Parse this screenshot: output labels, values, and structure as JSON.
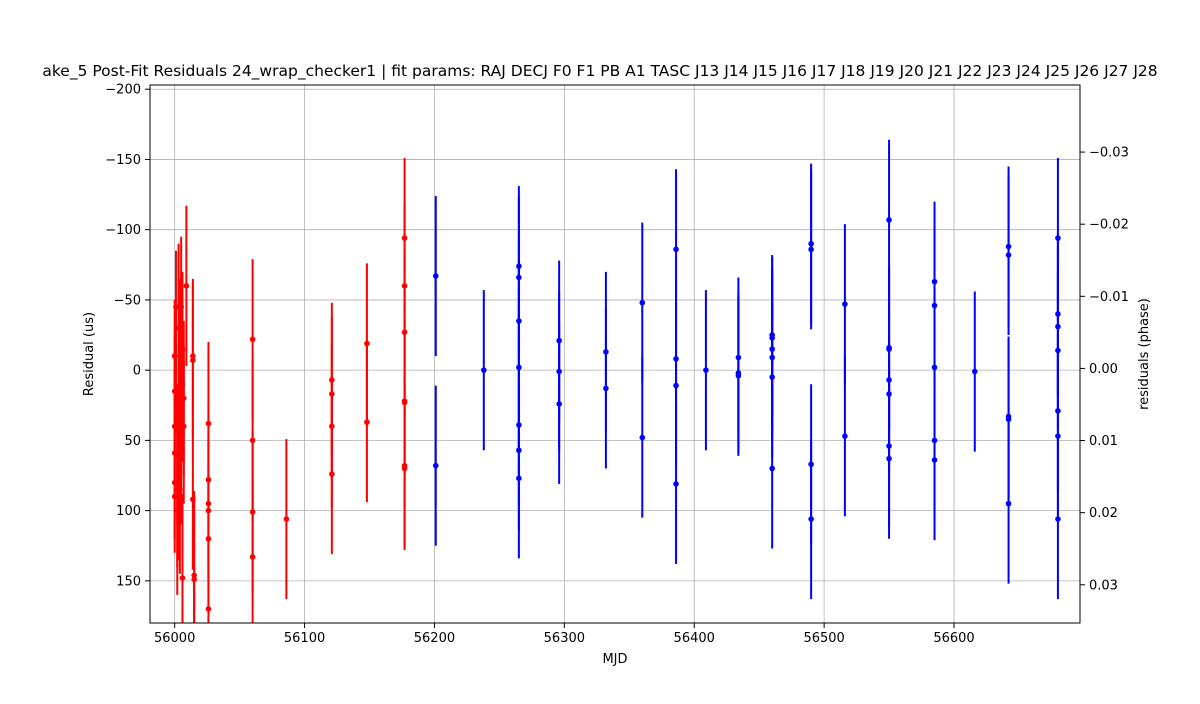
{
  "chart_data": {
    "type": "scatter",
    "title": "ake_5 Post-Fit Residuals 24_wrap_checker1 | fit params: RAJ DECJ F0 F1 PB A1 TASC J13 J14 J15 J16 J17 J18 J19 J20 J21 J22 J23 J24 J25 J26 J27 J28",
    "xlabel": "MJD",
    "ylabel": "Residual (us)",
    "ylabel_right": "residuals (phase)",
    "xlim": [
      55981,
      56697
    ],
    "ylim": [
      180,
      -203
    ],
    "ylim_right": [
      0.0353,
      -0.0393
    ],
    "y_inverted": true,
    "grid": true,
    "x_ticks": [
      56000,
      56100,
      56200,
      56300,
      56400,
      56500,
      56600
    ],
    "y_ticks": [
      -200,
      -150,
      -100,
      -50,
      0,
      50,
      100,
      150
    ],
    "y_ticks_right": [
      -0.03,
      -0.02,
      -0.01,
      0.0,
      0.01,
      0.02,
      0.03
    ],
    "x_tick_labels": [
      "56000",
      "56100",
      "56200",
      "56300",
      "56400",
      "56500",
      "56600"
    ],
    "y_tick_labels": [
      "−200",
      "−150",
      "−100",
      "−50",
      "0",
      "50",
      "100",
      "150"
    ],
    "y_tick_labels_right": [
      "−0.03",
      "−0.02",
      "−0.01",
      "0.00",
      "0.01",
      "0.02",
      "0.03"
    ],
    "series": [
      {
        "color": "#ff0000",
        "points": [
          [
            56000,
            59,
            40
          ],
          [
            56000,
            80,
            40
          ],
          [
            56000,
            90,
            40
          ],
          [
            56000,
            40,
            40
          ],
          [
            56000,
            15,
            40
          ],
          [
            56000,
            -10,
            40
          ],
          [
            56001,
            -45,
            40
          ],
          [
            56001,
            15,
            30
          ],
          [
            56002,
            100,
            60
          ],
          [
            56002,
            85,
            55
          ],
          [
            56002,
            60,
            50
          ],
          [
            56003,
            -30,
            60
          ],
          [
            56003,
            75,
            60
          ],
          [
            56003,
            40,
            60
          ],
          [
            56004,
            -10,
            55
          ],
          [
            56005,
            50,
            60
          ],
          [
            56005,
            -20,
            50
          ],
          [
            56005,
            -45,
            50
          ],
          [
            56006,
            10,
            55
          ],
          [
            56006,
            -15,
            55
          ],
          [
            56004,
            85,
            60
          ],
          [
            56006,
            148,
            60
          ],
          [
            56007,
            40,
            55
          ],
          [
            56007,
            20,
            55
          ],
          [
            56009,
            -60,
            57
          ],
          [
            56015,
            149,
            60
          ],
          [
            56015,
            146,
            60
          ],
          [
            56014,
            -10,
            55
          ],
          [
            56014,
            92,
            50
          ],
          [
            56014,
            -7,
            55
          ],
          [
            56026,
            170,
            45
          ],
          [
            56026,
            120,
            50
          ],
          [
            56026,
            100,
            50
          ],
          [
            56026,
            95,
            50
          ],
          [
            56026,
            78,
            55
          ],
          [
            56026,
            38,
            58
          ],
          [
            56060,
            133,
            60
          ],
          [
            56060,
            101,
            58
          ],
          [
            56060,
            50,
            58
          ],
          [
            56060,
            -22,
            57
          ],
          [
            56086,
            106,
            57
          ],
          [
            56121,
            74,
            57
          ],
          [
            56121,
            7,
            55
          ],
          [
            56121,
            17,
            55
          ],
          [
            56121,
            40,
            58
          ],
          [
            56148,
            -19,
            57
          ],
          [
            56148,
            37,
            57
          ],
          [
            56177,
            70,
            58
          ],
          [
            56177,
            68,
            58
          ],
          [
            56177,
            23,
            58
          ],
          [
            56177,
            22,
            58
          ],
          [
            56177,
            -27,
            58
          ],
          [
            56177,
            -60,
            58
          ],
          [
            56177,
            -94,
            57
          ]
        ]
      },
      {
        "color": "#0000ff",
        "points": [
          [
            56201,
            -67,
            57
          ],
          [
            56201,
            68,
            57
          ],
          [
            56238,
            0,
            57
          ],
          [
            56265,
            77,
            57
          ],
          [
            56265,
            57,
            57
          ],
          [
            56265,
            39,
            57
          ],
          [
            56265,
            -2,
            57
          ],
          [
            56265,
            -35,
            57
          ],
          [
            56265,
            -66,
            57
          ],
          [
            56265,
            -74,
            57
          ],
          [
            56296,
            24,
            57
          ],
          [
            56296,
            1,
            57
          ],
          [
            56296,
            -21,
            57
          ],
          [
            56332,
            13,
            57
          ],
          [
            56332,
            -13,
            57
          ],
          [
            56360,
            48,
            57
          ],
          [
            56360,
            -48,
            57
          ],
          [
            56386,
            81,
            57
          ],
          [
            56386,
            11,
            57
          ],
          [
            56386,
            -8,
            57
          ],
          [
            56386,
            -86,
            57
          ],
          [
            56409,
            0,
            57
          ],
          [
            56434,
            4,
            57
          ],
          [
            56434,
            2,
            57
          ],
          [
            56434,
            -9,
            57
          ],
          [
            56460,
            70,
            57
          ],
          [
            56460,
            5,
            57
          ],
          [
            56460,
            -9,
            57
          ],
          [
            56460,
            -15,
            57
          ],
          [
            56460,
            -23,
            57
          ],
          [
            56460,
            -25,
            57
          ],
          [
            56490,
            106,
            57
          ],
          [
            56490,
            67,
            57
          ],
          [
            56490,
            -86,
            57
          ],
          [
            56490,
            -90,
            57
          ],
          [
            56516,
            47,
            57
          ],
          [
            56516,
            -47,
            57
          ],
          [
            56550,
            63,
            57
          ],
          [
            56550,
            54,
            57
          ],
          [
            56550,
            17,
            57
          ],
          [
            56550,
            7,
            57
          ],
          [
            56550,
            -15,
            57
          ],
          [
            56550,
            -16,
            57
          ],
          [
            56550,
            -107,
            57
          ],
          [
            56585,
            64,
            57
          ],
          [
            56585,
            50,
            57
          ],
          [
            56585,
            -2,
            57
          ],
          [
            56585,
            -46,
            57
          ],
          [
            56585,
            -63,
            57
          ],
          [
            56616,
            1,
            57
          ],
          [
            56642,
            95,
            57
          ],
          [
            56642,
            35,
            57
          ],
          [
            56642,
            33,
            57
          ],
          [
            56642,
            -82,
            57
          ],
          [
            56642,
            -88,
            57
          ],
          [
            56680,
            106,
            57
          ],
          [
            56680,
            47,
            57
          ],
          [
            56680,
            29,
            57
          ],
          [
            56680,
            -14,
            57
          ],
          [
            56680,
            -31,
            57
          ],
          [
            56680,
            -40,
            57
          ],
          [
            56680,
            -94,
            57
          ]
        ]
      }
    ]
  }
}
